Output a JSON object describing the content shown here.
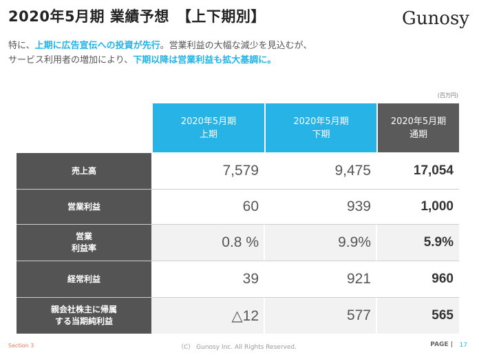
{
  "header": {
    "title": "2020年5月期 業績予想　【上下期別】",
    "logo": "Gunosy"
  },
  "subtitle": {
    "line1_pre": "特に、",
    "line1_hl": "上期に広告宣伝への投資が先行",
    "line1_post": "。営業利益の大幅な減少を見込むが、",
    "line2_pre": "サービス利用者の増加により、",
    "line2_hl": "下期以降は営業利益も拡大基調に。"
  },
  "table": {
    "unit": "(百万円)",
    "columns": [
      {
        "line1": "2020年5月期",
        "line2": "上期"
      },
      {
        "line1": "2020年5月期",
        "line2": "下期"
      },
      {
        "line1": "2020年5月期",
        "line2": "通期"
      }
    ],
    "rows": [
      {
        "label1": "売上高",
        "label2": "",
        "h1": "7,579",
        "h2": "9,475",
        "full": "17,054"
      },
      {
        "label1": "営業利益",
        "label2": "",
        "h1": "60",
        "h2": "939",
        "full": "1,000"
      },
      {
        "label1": "営業",
        "label2": "利益率",
        "h1": "0.8 %",
        "h2": "9.9%",
        "full": "5.9%"
      },
      {
        "label1": "経常利益",
        "label2": "",
        "h1": "39",
        "h2": "921",
        "full": "960"
      },
      {
        "label1": "親会社株主に帰属",
        "label2": "する当期純利益",
        "h1": "△12",
        "h2": "577",
        "full": "565"
      }
    ]
  },
  "footer": {
    "section": "Section 3",
    "copyright": "（C） Gunosy Inc. All Rights Reserved.",
    "page_label": "PAGE |",
    "page_number": "17"
  }
}
